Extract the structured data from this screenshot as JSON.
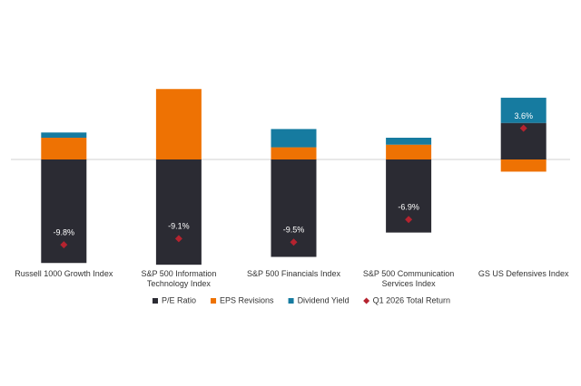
{
  "chart_data": {
    "type": "bar",
    "stacked": true,
    "categories": [
      "Russell 1000 Growth Index",
      "S&P 500 Information Technology Index",
      "S&P 500 Financials Index",
      "S&P 500 Communication Services Index",
      "GS US Defensives Index"
    ],
    "series": [
      {
        "name": "P/E Ratio",
        "color": "#2b2b33",
        "values": [
          -11.9,
          -12.1,
          -11.2,
          -8.4,
          4.2
        ]
      },
      {
        "name": "EPS Revisions",
        "color": "#ee7203",
        "values": [
          2.5,
          8.1,
          1.4,
          1.7,
          -1.4
        ]
      },
      {
        "name": "Dividend Yield",
        "color": "#167ba0",
        "values": [
          0.6,
          0,
          2.1,
          0.8,
          2.9
        ]
      },
      {
        "name": "Q1 2026 Total Return",
        "type": "scatter",
        "marker": "diamond",
        "color": "#b5232f",
        "values": [
          -9.8,
          -9.1,
          -9.5,
          -6.9,
          3.6
        ],
        "value_labels": [
          "-9.8%",
          "-9.1%",
          "-9.5%",
          "-6.9%",
          "3.6%"
        ]
      }
    ],
    "ylim": [
      -14,
      10
    ],
    "legend": "bottom"
  }
}
